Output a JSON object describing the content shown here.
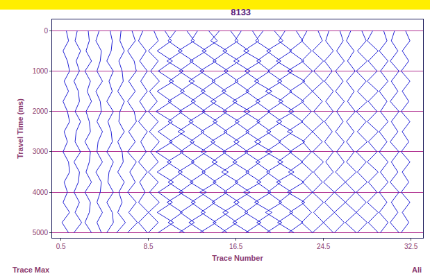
{
  "chart_data": {
    "type": "wiggle",
    "title": "8133",
    "x_label": "Trace Number",
    "y_label": "Travel Time (ms)",
    "annotations": [
      "Trace Max",
      "Ali"
    ],
    "color": "#1f1fd6",
    "grid": true,
    "xlim": [
      -0.3,
      33.6
    ],
    "xticks": [
      0.5,
      8.5,
      16.5,
      24.5,
      32.5
    ],
    "ylim": [
      5130,
      -280
    ],
    "yticks": [
      0,
      1000,
      2000,
      3000,
      4000,
      5000
    ],
    "x": [
      1,
      2,
      3,
      4,
      5,
      6,
      7,
      8,
      9,
      10,
      11,
      12,
      13,
      14,
      15,
      16,
      17,
      18,
      19,
      20,
      21,
      22,
      23,
      24,
      25,
      26,
      27,
      28,
      29,
      30,
      31,
      32
    ],
    "y": [
      0,
      250,
      500,
      750,
      1000,
      1250,
      1500,
      1750,
      2000,
      2250,
      2500,
      2750,
      3000,
      3250,
      3500,
      3750,
      4000,
      4250,
      4500,
      4750,
      5000
    ],
    "amplitudes": [
      [
        0,
        0.2,
        -0.3,
        0.1,
        0.3,
        -0.2,
        0.2,
        -0.3,
        0.1,
        0.3,
        -0.2,
        0.1,
        -0.3,
        0.2,
        0.3,
        -0.2,
        0.1,
        -0.3,
        0.3,
        -0.4,
        0.2
      ],
      [
        0,
        -0.2,
        0.3,
        -0.1,
        0.2,
        -0.3,
        0.1,
        0.2,
        -0.2,
        0.3,
        -0.1,
        -0.2,
        0.3,
        -0.3,
        0.2,
        0.1,
        -0.3,
        0.2,
        -0.2,
        0.4,
        -0.3
      ],
      [
        0,
        0.1,
        -0.2,
        0.3,
        -0.3,
        0.2,
        -0.1,
        0.3,
        -0.2,
        0.1,
        0.2,
        -0.3,
        0.2,
        0.1,
        -0.2,
        0.3,
        -0.3,
        0.2,
        0.1,
        -0.3,
        0.3
      ],
      [
        0,
        -0.3,
        0.2,
        0.1,
        -0.2,
        0.3,
        -0.3,
        0.1,
        0.2,
        -0.2,
        0.3,
        -0.1,
        -0.2,
        0.3,
        -0.3,
        0.2,
        0.1,
        -0.2,
        0.3,
        -0.2,
        0.2
      ],
      [
        0,
        0.2,
        0.1,
        -0.3,
        0.3,
        -0.1,
        0.2,
        -0.3,
        0.3,
        -0.2,
        0.1,
        0.2,
        -0.3,
        0.3,
        -0.1,
        -0.2,
        0.3,
        -0.3,
        0.2,
        0.3,
        -0.3
      ],
      [
        0,
        -0.1,
        0.3,
        -0.2,
        0.1,
        0.2,
        -0.3,
        0.3,
        -0.1,
        -0.2,
        0.3,
        -0.3,
        0.1,
        0.2,
        -0.3,
        0.3,
        -0.2,
        0.1,
        -0.3,
        0.4,
        -0.4
      ],
      [
        0,
        0.3,
        -0.4,
        0.2,
        0.4,
        -0.3,
        0.3,
        -0.4,
        0.2,
        0.4,
        -0.3,
        0.3,
        -0.4,
        0.4,
        -0.2,
        0.3,
        -0.4,
        0.4,
        -0.3,
        0.5,
        -0.4
      ],
      [
        0,
        -0.4,
        0.3,
        -0.3,
        0.4,
        -0.2,
        0.4,
        -0.3,
        0.3,
        -0.4,
        0.4,
        -0.2,
        0.3,
        -0.4,
        0.4,
        -0.3,
        0.2,
        -0.4,
        0.5,
        -0.4,
        0.4
      ],
      [
        0,
        0.4,
        -0.5,
        0.4,
        -0.3,
        0.5,
        -0.4,
        0.3,
        -0.5,
        0.4,
        -0.4,
        0.5,
        -0.3,
        0.4,
        -0.5,
        0.4,
        -0.4,
        0.5,
        -0.5,
        0.4,
        -0.5
      ],
      [
        0,
        0.6,
        -0.7,
        0.7,
        -0.6,
        0.8,
        -0.7,
        0.6,
        -0.8,
        0.7,
        -0.6,
        0.7,
        -0.8,
        0.6,
        -0.7,
        0.8,
        -0.6,
        0.7,
        -0.7,
        0.8,
        -0.6
      ],
      [
        0,
        -0.7,
        0.6,
        -0.8,
        0.7,
        -0.6,
        0.8,
        -0.7,
        0.6,
        -0.7,
        0.8,
        -0.6,
        0.7,
        -0.8,
        0.6,
        -0.7,
        0.7,
        -0.8,
        0.6,
        -0.7,
        0.8
      ],
      [
        0,
        0.7,
        -0.8,
        0.6,
        -0.7,
        0.7,
        -0.6,
        0.8,
        -0.7,
        0.6,
        -0.8,
        0.7,
        -0.6,
        0.7,
        -0.8,
        0.6,
        -0.7,
        0.8,
        -0.6,
        0.7,
        -0.7
      ],
      [
        0,
        -0.6,
        0.8,
        -0.7,
        0.6,
        -0.8,
        0.7,
        -0.6,
        0.7,
        -0.8,
        0.6,
        -0.7,
        0.8,
        -0.6,
        0.7,
        -0.7,
        0.8,
        -0.6,
        0.7,
        -0.8,
        0.6
      ],
      [
        0,
        0.8,
        -0.6,
        0.7,
        -0.8,
        0.6,
        -0.7,
        0.7,
        -0.6,
        0.8,
        -0.7,
        0.6,
        -0.7,
        0.8,
        -0.6,
        0.7,
        -0.8,
        0.6,
        -0.7,
        0.7,
        -0.8
      ],
      [
        0,
        -0.8,
        0.7,
        -0.6,
        0.8,
        -0.7,
        0.6,
        -0.8,
        0.7,
        -0.6,
        0.7,
        -0.8,
        0.6,
        -0.7,
        0.8,
        -0.6,
        0.7,
        -0.7,
        0.8,
        -0.6,
        0.7
      ],
      [
        0,
        0.7,
        -0.7,
        0.8,
        -0.6,
        0.7,
        -0.8,
        0.6,
        -0.7,
        0.8,
        -0.6,
        0.8,
        -0.7,
        0.6,
        -0.8,
        0.7,
        -0.6,
        0.8,
        -0.7,
        0.6,
        -0.8
      ],
      [
        0,
        -0.6,
        0.7,
        -0.7,
        0.8,
        -0.6,
        0.7,
        -0.8,
        0.8,
        -0.6,
        0.7,
        -0.7,
        0.6,
        -0.8,
        0.7,
        -0.6,
        0.8,
        -0.7,
        0.6,
        -0.8,
        0.7
      ],
      [
        0,
        0.6,
        -0.8,
        0.8,
        -0.7,
        0.6,
        -0.6,
        0.7,
        -0.8,
        0.7,
        -0.6,
        0.8,
        -0.7,
        0.7,
        -0.6,
        0.8,
        -0.8,
        0.6,
        -0.7,
        0.8,
        -0.6
      ],
      [
        0,
        -0.7,
        0.7,
        -0.6,
        0.6,
        -0.8,
        0.8,
        -0.7,
        0.6,
        -0.6,
        0.7,
        -0.8,
        0.8,
        -0.7,
        0.6,
        -0.6,
        0.7,
        -0.8,
        0.8,
        -0.6,
        0.7
      ],
      [
        0,
        0.8,
        -0.7,
        0.6,
        -0.6,
        0.7,
        -0.8,
        0.8,
        -0.6,
        0.7,
        -0.7,
        0.6,
        -0.8,
        0.8,
        -0.7,
        0.6,
        -0.6,
        0.7,
        -0.8,
        0.7,
        -0.7
      ],
      [
        0,
        -0.6,
        0.6,
        -0.8,
        0.7,
        -0.7,
        0.6,
        -0.6,
        0.8,
        -0.8,
        0.7,
        -0.6,
        0.6,
        -0.7,
        0.8,
        -0.8,
        0.6,
        -0.6,
        0.7,
        -0.7,
        0.8
      ],
      [
        0,
        0.6,
        -0.6,
        0.7,
        -0.8,
        0.8,
        -0.6,
        0.7,
        -0.7,
        0.6,
        -0.8,
        0.8,
        -0.6,
        0.6,
        -0.7,
        0.7,
        -0.8,
        0.8,
        -0.6,
        0.6,
        -0.7
      ],
      [
        0,
        -0.5,
        0.4,
        -0.5,
        0.5,
        -0.4,
        0.5,
        -0.5,
        0.4,
        -0.5,
        0.5,
        -0.4,
        0.4,
        -0.5,
        0.5,
        -0.4,
        0.5,
        -0.5,
        0.4,
        -0.5,
        0.5
      ],
      [
        0,
        0.4,
        -0.5,
        0.5,
        -0.4,
        0.5,
        -0.5,
        0.4,
        -0.4,
        0.5,
        -0.5,
        0.4,
        -0.5,
        0.5,
        -0.4,
        0.4,
        -0.5,
        0.5,
        -0.4,
        0.5,
        -0.5
      ],
      [
        0,
        -0.3,
        0.4,
        -0.4,
        0.3,
        -0.4,
        0.4,
        -0.3,
        0.4,
        -0.4,
        0.3,
        -0.4,
        0.4,
        -0.3,
        0.4,
        -0.5,
        0.5,
        -0.4,
        0.5,
        -0.5,
        0.4
      ],
      [
        0,
        0.3,
        -0.3,
        0.4,
        -0.4,
        0.3,
        -0.4,
        0.4,
        -0.3,
        0.3,
        -0.4,
        0.4,
        -0.3,
        0.4,
        -0.4,
        0.5,
        -0.5,
        0.5,
        -0.5,
        0.4,
        -0.5
      ],
      [
        0,
        -0.4,
        0.3,
        -0.3,
        0.4,
        -0.4,
        0.3,
        -0.3,
        0.4,
        -0.4,
        0.3,
        -0.4,
        0.3,
        -0.4,
        0.5,
        -0.5,
        0.4,
        -0.5,
        0.5,
        -0.5,
        0.5
      ],
      [
        0,
        0.4,
        -0.4,
        0.5,
        -0.5,
        0.4,
        -0.4,
        0.5,
        -0.5,
        0.4,
        -0.4,
        0.5,
        -0.5,
        0.4,
        -0.4,
        0.5,
        -0.5,
        0.4,
        -0.5,
        0.5,
        -0.4
      ],
      [
        0,
        -0.5,
        0.5,
        -0.4,
        0.4,
        -0.5,
        0.5,
        -0.4,
        0.4,
        -0.5,
        0.5,
        -0.4,
        0.4,
        -0.5,
        0.5,
        -0.4,
        0.4,
        -0.5,
        0.5,
        -0.4,
        0.5
      ],
      [
        0,
        0.3,
        -0.4,
        0.4,
        -0.3,
        0.4,
        -0.4,
        0.3,
        -0.3,
        0.4,
        -0.4,
        0.3,
        -0.4,
        0.4,
        -0.3,
        0.4,
        -0.4,
        0.3,
        -0.4,
        0.4,
        -0.3
      ],
      [
        0,
        -0.3,
        0.3,
        -0.4,
        0.4,
        -0.3,
        0.3,
        -0.4,
        0.4,
        -0.3,
        0.3,
        -0.4,
        0.4,
        -0.3,
        0.3,
        -0.4,
        0.4,
        -0.3,
        0.3,
        -0.4,
        0.4
      ],
      [
        0,
        0.4,
        -0.3,
        0.3,
        -0.4,
        0.4,
        -0.3,
        0.3,
        -0.4,
        0.4,
        -0.3,
        0.3,
        -0.4,
        0.4,
        -0.3,
        0.3,
        -0.4,
        0.4,
        -0.3,
        0.3,
        -0.4
      ]
    ]
  }
}
